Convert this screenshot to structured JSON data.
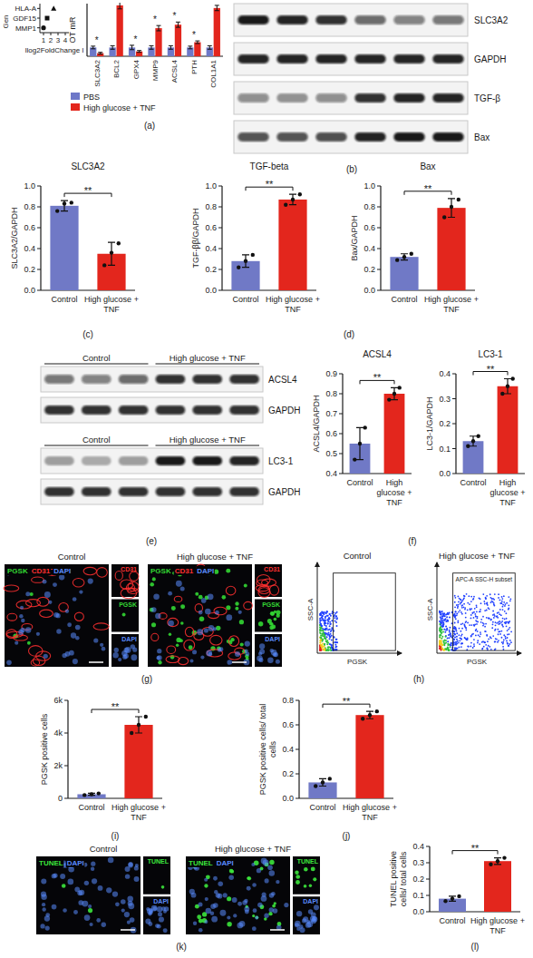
{
  "chart_data": [
    {
      "type": "scatter",
      "ylabel": "Gen",
      "xlabel": "llog2FoldChange l",
      "categories": [
        "HLA-A",
        "GDF15",
        "MMP1"
      ],
      "values": [
        2.4,
        1.5,
        1.0
      ],
      "xlim": [
        0.5,
        4.5
      ],
      "xticks": [
        1,
        2,
        3,
        4
      ],
      "color": "#111111"
    },
    {
      "type": "bar",
      "panel": "(a)",
      "ylabel": "OT mR",
      "categories": [
        "SLC3A2",
        "BCL2",
        "GPX4",
        "MMP9",
        "ACSL4",
        "PTH",
        "COL1A1"
      ],
      "series": [
        {
          "name": "PBS",
          "color": "#6e78c8",
          "values": [
            1,
            1,
            1,
            1,
            1,
            1,
            1
          ],
          "errors": [
            0.15,
            0.2,
            0.25,
            0.2,
            0.2,
            0.15,
            0.2
          ]
        },
        {
          "name": "High glucose + TNF",
          "color": "#e3261d",
          "values": [
            0.35,
            5.8,
            0.55,
            3.2,
            3.6,
            1.6,
            5.5
          ],
          "errors": [
            0.1,
            0.4,
            0.1,
            0.3,
            0.3,
            0.15,
            0.3
          ]
        }
      ],
      "ylim": [
        0,
        6
      ],
      "tick_labels": "x",
      "legend": "bottom-left",
      "annotations": [
        {
          "text": "*",
          "category": "SLC3A2"
        },
        {
          "text": "*",
          "category": "GPX4"
        },
        {
          "text": "*",
          "category": "MMP9"
        },
        {
          "text": "*",
          "category": "ACSL4"
        },
        {
          "text": "*",
          "category": "PTH"
        }
      ]
    },
    {
      "type": "bar",
      "panel": "(c)",
      "title": "SLC3A2",
      "ylabel": "SLC3A2/GAPDH",
      "categories": [
        "Control",
        "High glucose + TNF"
      ],
      "values": [
        0.81,
        0.35
      ],
      "errors": [
        0.05,
        0.11
      ],
      "points": [
        [
          0.76,
          0.83,
          0.84
        ],
        [
          0.24,
          0.36,
          0.45
        ]
      ],
      "colors": [
        "#7079c6",
        "#e3261d"
      ],
      "ylim": [
        0,
        1
      ],
      "yticks": [
        {
          "value": 0,
          "label": "0.0"
        },
        0.2,
        0.4,
        0.6,
        0.8,
        {
          "value": 1,
          "label": "1.0"
        }
      ],
      "annotation": "**"
    },
    {
      "type": "bar",
      "title": "TGF-beta",
      "ylabel": "TGF-ββ/GAPDH",
      "categories": [
        "Control",
        "High glucose + TNF"
      ],
      "values": [
        0.28,
        0.87
      ],
      "errors": [
        0.06,
        0.05
      ],
      "points": [
        [
          0.22,
          0.28,
          0.34
        ],
        [
          0.82,
          0.87,
          0.92
        ]
      ],
      "colors": [
        "#7079c6",
        "#e3261d"
      ],
      "ylim": [
        0,
        1
      ],
      "yticks": [
        {
          "value": 0,
          "label": "0.0"
        },
        0.2,
        0.4,
        0.6,
        0.8,
        {
          "value": 1,
          "label": "1.0"
        }
      ],
      "annotation": "**"
    },
    {
      "type": "bar",
      "panel": "(d)",
      "title": "Bax",
      "ylabel": "Bax/GAPDH",
      "categories": [
        "Control",
        "High glucose + TNF"
      ],
      "values": [
        0.32,
        0.79
      ],
      "errors": [
        0.03,
        0.09
      ],
      "points": [
        [
          0.29,
          0.32,
          0.35
        ],
        [
          0.7,
          0.8,
          0.87
        ]
      ],
      "colors": [
        "#7079c6",
        "#e3261d"
      ],
      "ylim": [
        0,
        1
      ],
      "yticks": [
        {
          "value": 0,
          "label": "0.0"
        },
        0.2,
        0.4,
        0.6,
        0.8,
        {
          "value": 1,
          "label": "1.0"
        }
      ],
      "annotation": "**"
    },
    {
      "type": "bar",
      "title": "ACSL4",
      "ylabel": "ACSL4/GAPDH",
      "categories": [
        "Control",
        "High glucose + TNF"
      ],
      "values": [
        0.55,
        0.8
      ],
      "errors": [
        0.08,
        0.03
      ],
      "points": [
        [
          0.47,
          0.55,
          0.63
        ],
        [
          0.77,
          0.8,
          0.83
        ]
      ],
      "colors": [
        "#7079c6",
        "#e3261d"
      ],
      "ylim": [
        0.4,
        0.9
      ],
      "yticks": [
        0.4,
        0.5,
        0.6,
        0.7,
        0.8,
        0.9
      ],
      "annotation": "**"
    },
    {
      "type": "bar",
      "panel": "(f)",
      "title": "LC3-1",
      "ylabel": "LC3-1/GAPDH",
      "categories": [
        "Control",
        "High glucose + TNF"
      ],
      "values": [
        0.13,
        0.35
      ],
      "errors": [
        0.02,
        0.03
      ],
      "points": [
        [
          0.11,
          0.13,
          0.15
        ],
        [
          0.32,
          0.35,
          0.38
        ]
      ],
      "colors": [
        "#7079c6",
        "#e3261d"
      ],
      "ylim": [
        0,
        0.4
      ],
      "yticks": [
        {
          "value": 0,
          "label": "0.0"
        },
        0.1,
        0.2,
        0.3,
        0.4
      ],
      "annotation": "**"
    },
    {
      "type": "bar",
      "panel": "(i)",
      "ylabel": "PGSK positive cells",
      "categories": [
        "Control",
        "High glucose + TNF"
      ],
      "values": [
        250,
        4500
      ],
      "errors": [
        60,
        500
      ],
      "points": [
        [
          200,
          250,
          300
        ],
        [
          4000,
          4500,
          5000
        ]
      ],
      "colors": [
        "#7079c6",
        "#e3261d"
      ],
      "ylim": [
        0,
        6000
      ],
      "yticks": [
        0,
        {
          "value": 2000,
          "label": "2k"
        },
        {
          "value": 4000,
          "label": "4k"
        },
        {
          "value": 6000,
          "label": "6k"
        }
      ],
      "annotation": "**"
    },
    {
      "type": "bar",
      "panel": "(j)",
      "ylabel": "PGSK positive cells/ total cells",
      "categories": [
        "Control",
        "High glucose + TNF"
      ],
      "values": [
        0.13,
        0.68
      ],
      "errors": [
        0.03,
        0.03
      ],
      "points": [
        [
          0.1,
          0.13,
          0.16
        ],
        [
          0.65,
          0.68,
          0.71
        ]
      ],
      "colors": [
        "#7079c6",
        "#e3261d"
      ],
      "ylim": [
        0,
        0.8
      ],
      "yticks": [
        {
          "value": 0,
          "label": "0.0"
        },
        0.2,
        0.4,
        0.6,
        0.8
      ],
      "annotation": "**"
    },
    {
      "type": "bar",
      "panel": "(l)",
      "ylabel": "TUNEL positive cells/ total cells",
      "categories": [
        "Control",
        "High glucose + TNF"
      ],
      "values": [
        0.08,
        0.31
      ],
      "errors": [
        0.015,
        0.02
      ],
      "points": [
        [
          0.065,
          0.08,
          0.095
        ],
        [
          0.29,
          0.31,
          0.33
        ]
      ],
      "colors": [
        "#7079c6",
        "#e3261d"
      ],
      "ylim": [
        0,
        0.4
      ],
      "yticks": [
        {
          "value": 0,
          "label": "0.0"
        },
        0.1,
        0.2,
        0.3,
        0.4
      ],
      "annotation": "**"
    }
  ],
  "blots": [
    {
      "panel": "(b)",
      "labels": [
        "SLC3A2",
        "GAPDH",
        "TGF-β",
        "Bax"
      ]
    },
    {
      "panel": "(e)",
      "groups": [
        "Control",
        "High glucose + TNF"
      ],
      "blocks": [
        {
          "labels": [
            "ACSL4",
            "GAPDH"
          ]
        },
        {
          "labels": [
            "LC3-1",
            "GAPDH"
          ]
        }
      ]
    }
  ],
  "micrographs": [
    {
      "panel": "(g)",
      "titles": [
        "Control",
        "High glucose + TNF"
      ],
      "stains": [
        {
          "text": "PGSK",
          "color": "#33d633"
        },
        {
          "text": "CD31",
          "color": "#ff3030"
        },
        {
          "text": "DAPI",
          "color": "#5a8cff"
        }
      ],
      "channels": [
        "CD31",
        "PGSK",
        "DAPI"
      ]
    },
    {
      "panel": "(k)",
      "titles": [
        "Control",
        "High glucose + TNF"
      ],
      "stains": [
        {
          "text": "TUNEL",
          "color": "#3ce63c"
        },
        {
          "text": "DAPI",
          "color": "#5a8cff"
        }
      ],
      "channels": [
        "TUNEL",
        "DAPI"
      ]
    }
  ],
  "flow": {
    "panel": "(h)",
    "titles": [
      "Control",
      "High glucose + TNF"
    ],
    "xlabel": "PGSK",
    "ylabel": "SSC-A",
    "gate_label": "APC-A SSC-H subset"
  }
}
